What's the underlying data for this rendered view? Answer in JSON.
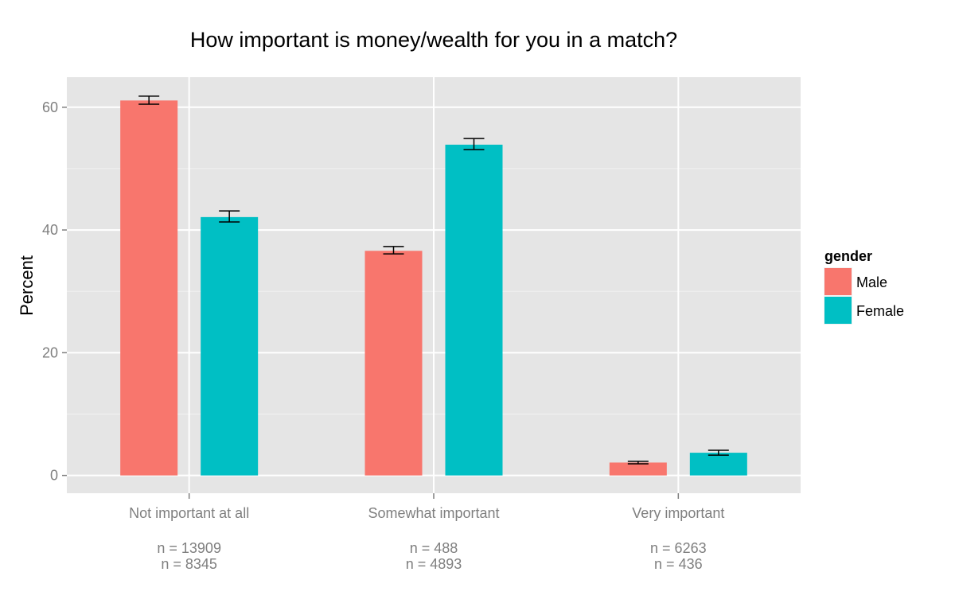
{
  "chart_data": {
    "type": "bar",
    "title": "How important is money/wealth for you in a match?",
    "xlabel": "",
    "ylabel": "Percent",
    "categories": [
      "Not important at all",
      "Somewhat important",
      "Very important"
    ],
    "series": [
      {
        "name": "Male",
        "color": "#F8766D",
        "values": [
          61.1,
          36.6,
          2.1
        ],
        "error_low": [
          60.5,
          36.1,
          1.9
        ],
        "error_high": [
          61.8,
          37.3,
          2.3
        ]
      },
      {
        "name": "Female",
        "color": "#00BFC4",
        "values": [
          42.1,
          53.9,
          3.7
        ],
        "error_low": [
          41.3,
          53.1,
          3.3
        ],
        "error_high": [
          43.1,
          54.9,
          4.1
        ]
      }
    ],
    "n_labels": [
      [
        "n = 13909",
        "n = 8345"
      ],
      [
        "n = 488",
        "n = 4893"
      ],
      [
        "n = 6263",
        "n = 436"
      ]
    ],
    "yticks": [
      0,
      20,
      40,
      60
    ],
    "ylim": [
      -2.9,
      64.9
    ],
    "grid": true,
    "legend": {
      "title": "gender",
      "position": "right"
    }
  }
}
